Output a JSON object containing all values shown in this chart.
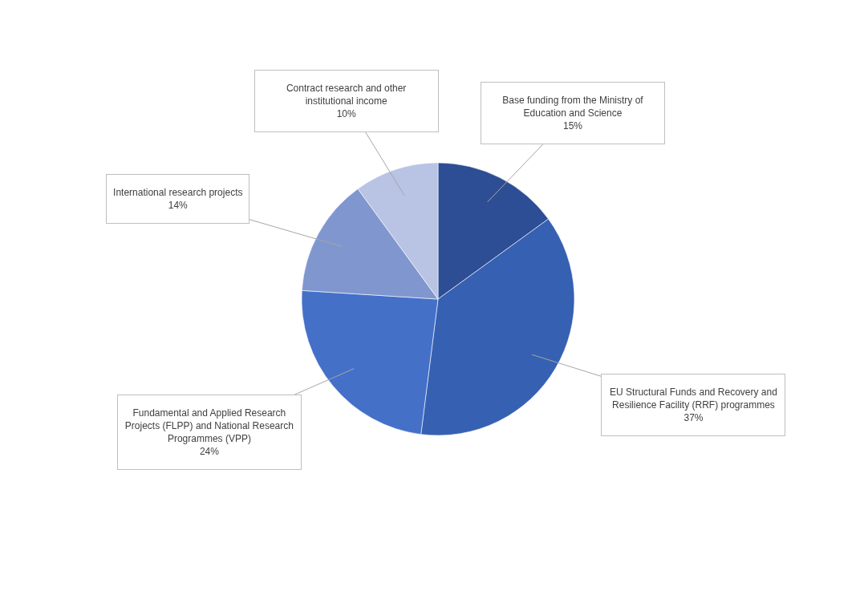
{
  "chart_data": {
    "type": "pie",
    "categories": [
      "Base funding from the Ministry of Education and Science",
      "EU Structural Funds and Recovery and Resilience Facility (RRF) programmes",
      "Fundamental and Applied Research Projects (FLPP) and National Research Programmes (VPP)",
      "International research projects",
      "Contract research and other institutional income"
    ],
    "values": [
      15,
      37,
      24,
      14,
      10
    ],
    "colors": [
      "#2d4d94",
      "#3660b2",
      "#4470c8",
      "#8096cf",
      "#b9c3e3"
    ],
    "value_labels": [
      "15%",
      "37%",
      "24%",
      "14%",
      "10%"
    ]
  }
}
